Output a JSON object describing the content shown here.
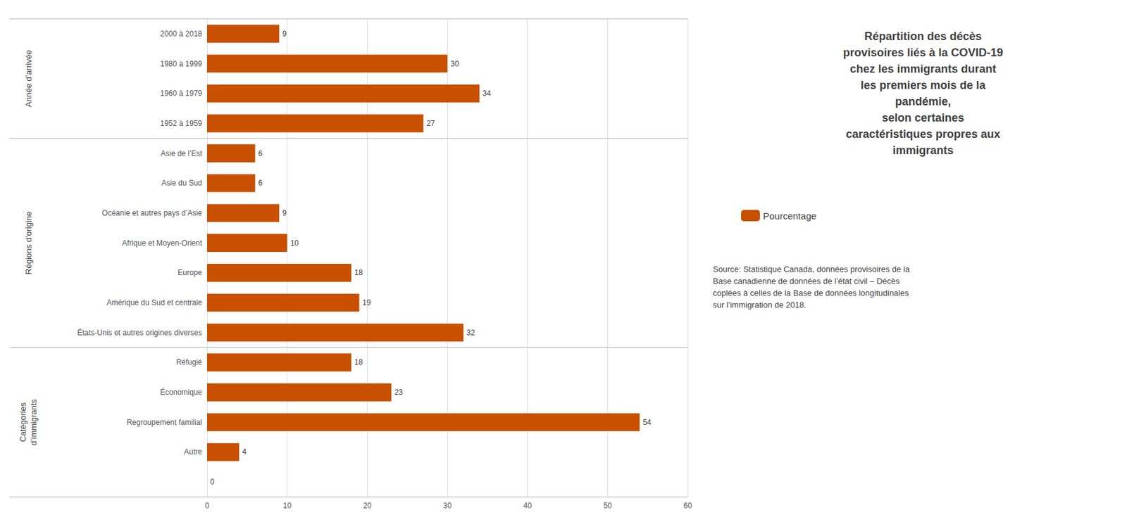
{
  "chart_data": {
    "type": "bar",
    "orientation": "horizontal",
    "title": "Répartition des décès\nprovisoires liés à la COVID-19\nchez les immigrants durant\nles premiers mois de la\npandémie,\nselon certaines\ncaractéristiques propres aux\nimmigrants",
    "categories": [
      "2000 à 2018",
      "1980 à 1999",
      "1960 à 1979",
      "1952 à 1959",
      "Asie de l’Est",
      "Asie du Sud",
      "Océanie et autres pays d’Asie",
      "Afrique et Moyen-Orient",
      "Europe",
      "Amérique du Sud et centrale",
      "États-Unis et autres origines diverses",
      "Réfugié",
      "Économique",
      "Regroupement familial",
      "Autre",
      null
    ],
    "series": [
      {
        "name": "Pourcentage",
        "color": "#C85000",
        "values": [
          9,
          30,
          34,
          27,
          6,
          6,
          9,
          10,
          18,
          19,
          32,
          18,
          23,
          54,
          4,
          0
        ]
      }
    ],
    "xlim": [
      0,
      60
    ],
    "xticks": [
      0,
      10,
      20,
      30,
      40,
      50,
      60
    ],
    "grid": true,
    "data_labels": true,
    "legend": "right",
    "annotations": [
      {
        "text": "Année d’arrivée",
        "categories": [
          "2000 à 2018",
          "1980 à 1999",
          "1960 à 1979",
          "1952 à 1959"
        ]
      },
      {
        "text": "Régions d’origine",
        "categories": [
          "Asie de l’Est",
          "Asie du Sud",
          "Océanie et autres pays d’Asie",
          "Afrique et Moyen-Orient",
          "Europe",
          "Amérique du Sud et centrale",
          "États-Unis et autres origines diverses"
        ]
      },
      {
        "text": "Catégories\nd’immigrants",
        "categories": [
          "Réfugié",
          "Économique",
          "Regroupement familial",
          "Autre",
          null
        ]
      },
      {
        "text": "Source: Statistique Canada, données provisoires de la\nBase canadienne de données de l’état civil – Décès\ncoplées à celles de la Base de données longitudinales\nsur l’immigration de 2018."
      }
    ]
  }
}
